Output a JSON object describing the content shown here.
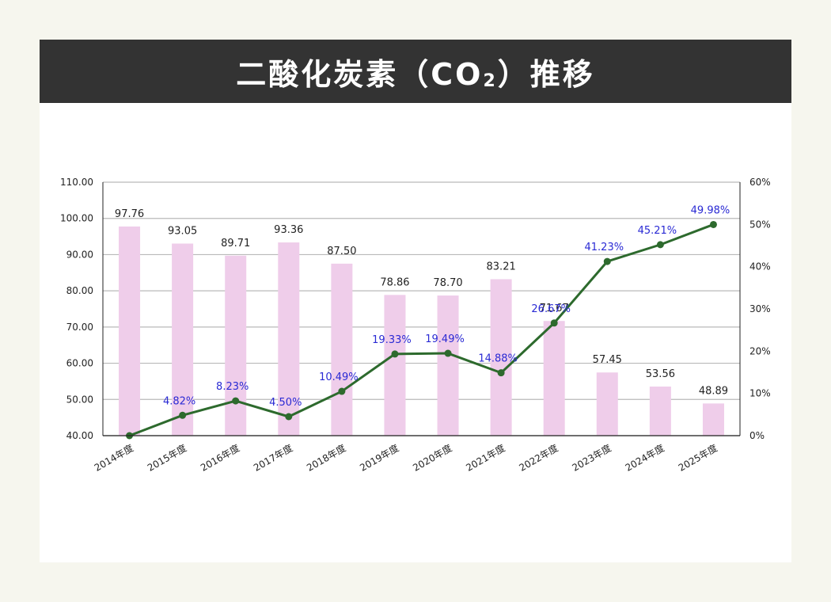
{
  "page": {
    "title_main": "二酸化炭素（CO",
    "title_sub": "2",
    "title_end": "）推移"
  },
  "colors": {
    "background": "#f6f6ee",
    "title_bar": "#333333",
    "bar": "#efcdea",
    "line": "#2d6a2d",
    "pct_label": "#2a2ad4",
    "grid": "#b9b9b9"
  },
  "chart_data": {
    "type": "bar",
    "title": "二酸化炭素（CO2）推移",
    "categories": [
      "2014年度",
      "2015年度",
      "2016年度",
      "2017年度",
      "2018年度",
      "2019年度",
      "2020年度",
      "2021年度",
      "2022年度",
      "2023年度",
      "2024年度",
      "2025年度"
    ],
    "series": [
      {
        "type": "bar",
        "axis": "left",
        "values": [
          97.76,
          93.05,
          89.71,
          93.36,
          87.5,
          78.86,
          78.7,
          83.21,
          71.67,
          57.45,
          53.56,
          48.89
        ],
        "labels": [
          "97.76",
          "93.05",
          "89.71",
          "93.36",
          "87.50",
          "78.86",
          "78.70",
          "83.21",
          "71.67",
          "57.45",
          "53.56",
          "48.89"
        ]
      },
      {
        "type": "line",
        "axis": "right",
        "values": [
          0.0,
          4.82,
          8.23,
          4.5,
          10.49,
          19.33,
          19.49,
          14.88,
          26.67,
          41.23,
          45.21,
          49.98
        ],
        "labels": [
          null,
          "4.82%",
          "8.23%",
          "4.50%",
          "10.49%",
          "19.33%",
          "19.49%",
          "14.88%",
          "26.67%",
          "41.23%",
          "45.21%",
          "49.98%"
        ]
      }
    ],
    "y_left": {
      "range": [
        40,
        110
      ],
      "ticks": [
        40,
        50,
        60,
        70,
        80,
        90,
        100,
        110
      ],
      "tick_labels": [
        "40.00",
        "50.00",
        "60.00",
        "70.00",
        "80.00",
        "90.00",
        "100.00",
        "110.00"
      ]
    },
    "y_right": {
      "range": [
        0,
        60
      ],
      "ticks": [
        0,
        10,
        20,
        30,
        40,
        50,
        60
      ],
      "tick_labels": [
        "0%",
        "10%",
        "20%",
        "30%",
        "40%",
        "50%",
        "60%"
      ]
    },
    "grid": true,
    "legend": "none"
  }
}
